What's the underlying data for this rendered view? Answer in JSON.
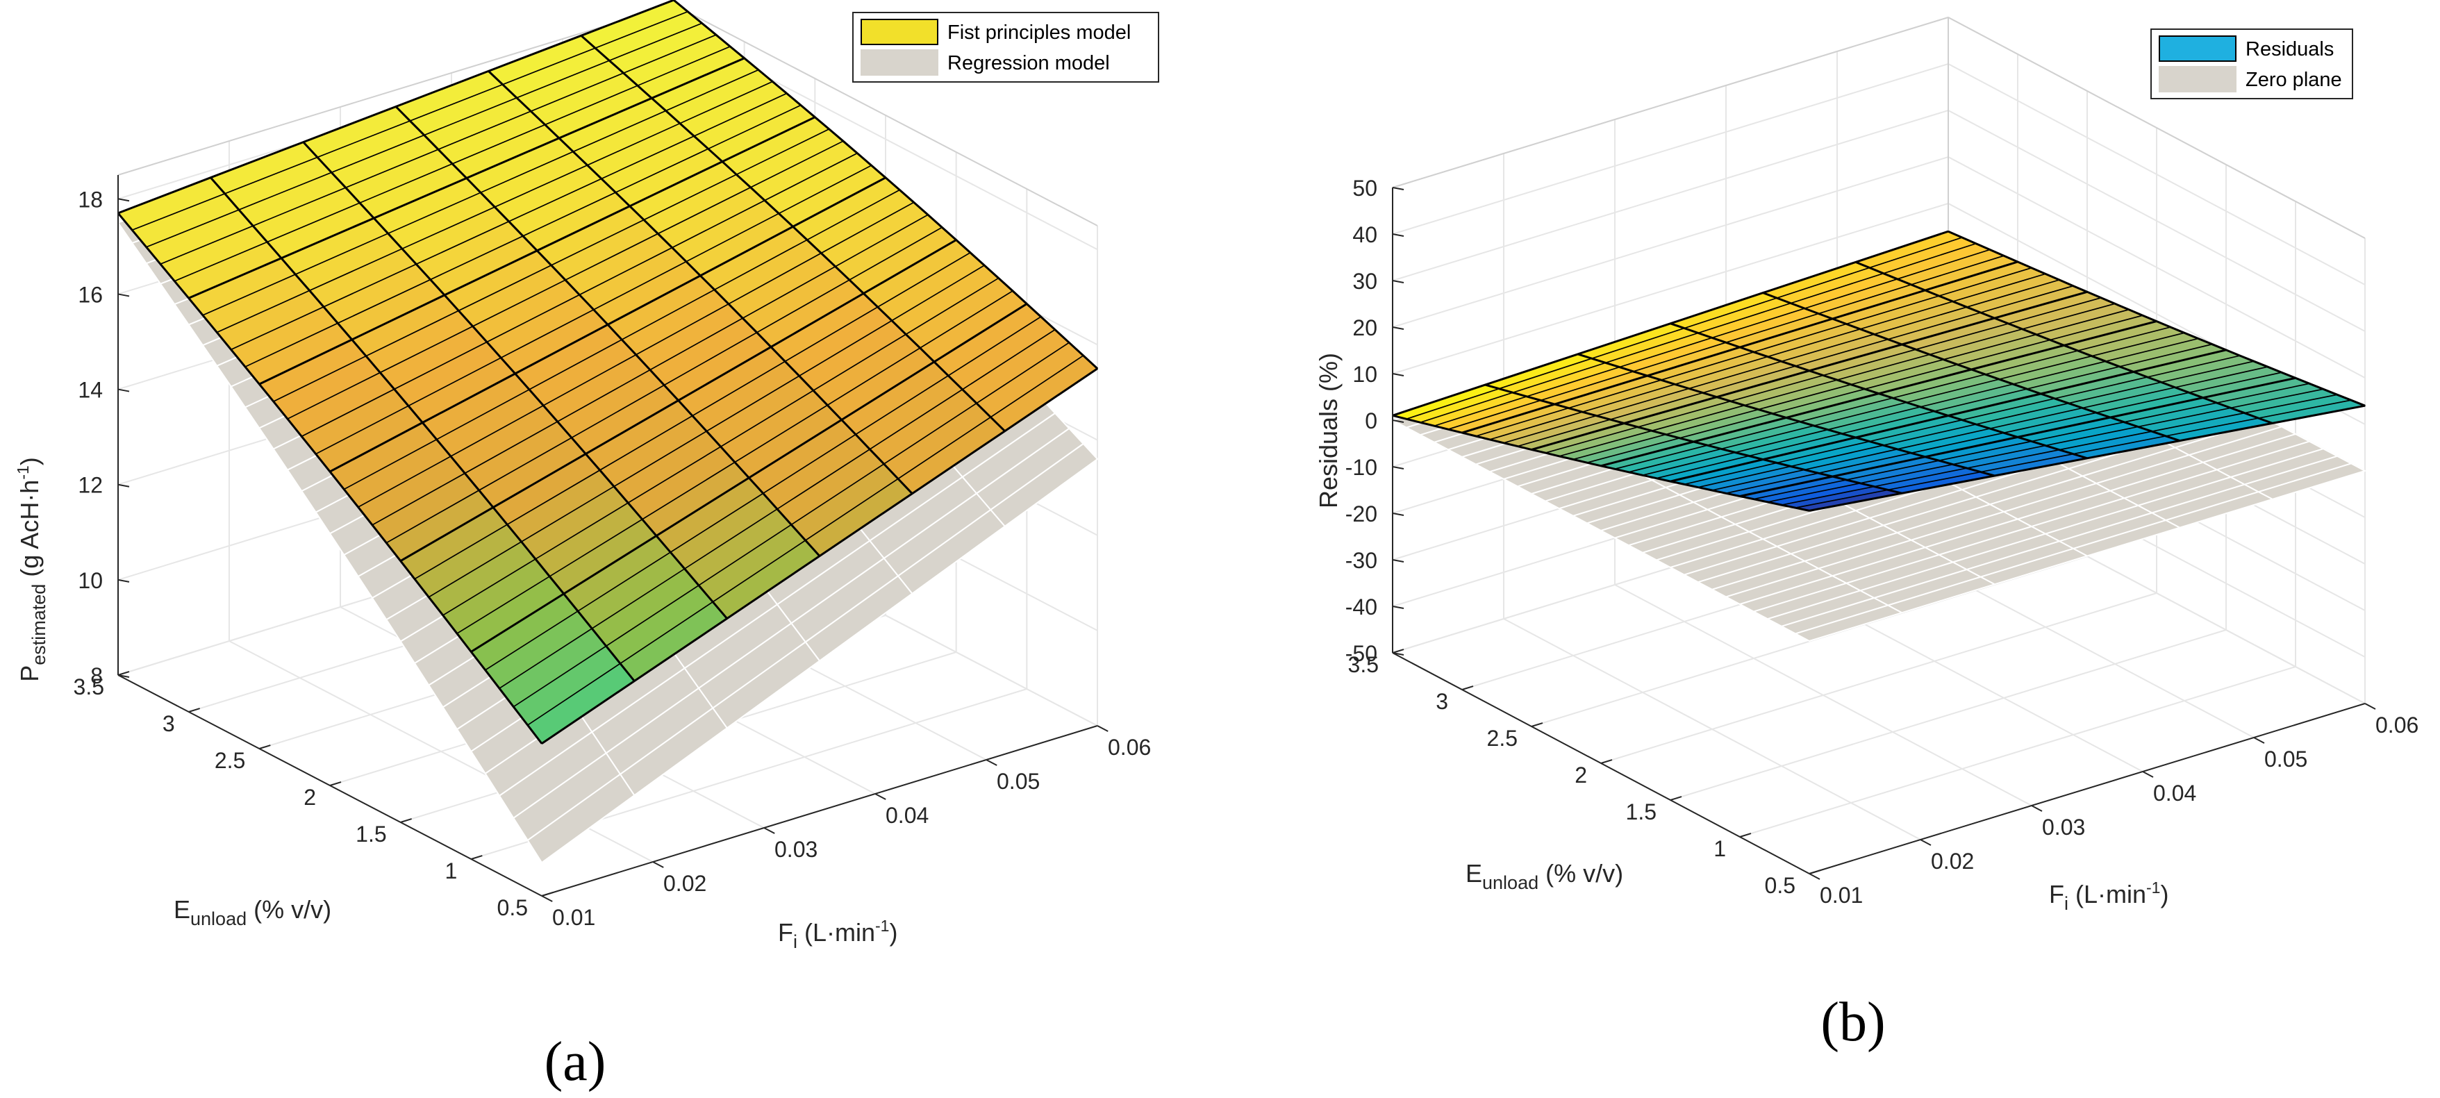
{
  "chart_data": [
    {
      "type": "surface3d",
      "panel_label": "(a)",
      "zlabel": {
        "main": "P",
        "sub": "estimated",
        "rest": " (g AcH·h",
        "sup": "-1",
        "end": ")"
      },
      "xlabel": {
        "main": "F",
        "sub": "i",
        "rest": " (L·min",
        "sup": "-1",
        "end": ")"
      },
      "ylabel": {
        "main": "E",
        "sub": "unload",
        "rest": " (% v/v)"
      },
      "x_ticks": [
        "0.01",
        "0.02",
        "0.03",
        "0.04",
        "0.05",
        "0.06"
      ],
      "y_ticks": [
        "0.5",
        "1",
        "1.5",
        "2",
        "2.5",
        "3",
        "3.5"
      ],
      "z_ticks": [
        "8",
        "10",
        "12",
        "14",
        "16",
        "18"
      ],
      "xlim": [
        0.01,
        0.06
      ],
      "ylim": [
        0.5,
        3.5
      ],
      "zlim": [
        8,
        18.5
      ],
      "legend": [
        "Fist principles model",
        "Regression model"
      ],
      "legend_colors": [
        "#f2e02a",
        "#d8d4cc"
      ],
      "surfaces": {
        "first_principles": {
          "corners": {
            "Fmin_Emin": 11.2,
            "Fmax_Emin": 15.5,
            "Fmin_Emax": 17.7,
            "Fmax_Emax": 18.6
          },
          "color_range": [
            11.2,
            18.6
          ]
        },
        "regression": {
          "corners": {
            "Fmin_Emin": 8.7,
            "Fmax_Emin": 13.6,
            "Fmin_Emax": 17.5,
            "Fmax_Emax": 18.0
          }
        }
      }
    },
    {
      "type": "surface3d",
      "panel_label": "(b)",
      "zlabel": {
        "main": "Residuals (%)"
      },
      "xlabel": {
        "main": "F",
        "sub": "i",
        "rest": " (L·min",
        "sup": "-1",
        "end": ")"
      },
      "ylabel": {
        "main": "E",
        "sub": "unload",
        "rest": " (% v/v)"
      },
      "x_ticks": [
        "0.01",
        "0.02",
        "0.03",
        "0.04",
        "0.05",
        "0.06"
      ],
      "y_ticks": [
        "0.5",
        "1",
        "1.5",
        "2",
        "2.5",
        "3",
        "3.5"
      ],
      "z_ticks": [
        "-50",
        "-40",
        "-30",
        "-20",
        "-10",
        "0",
        "10",
        "20",
        "30",
        "40",
        "50"
      ],
      "xlim": [
        0.01,
        0.06
      ],
      "ylim": [
        0.5,
        3.5
      ],
      "zlim": [
        -50,
        50
      ],
      "legend": [
        "Residuals",
        "Zero plane"
      ],
      "legend_colors": [
        "#1fb0e0",
        "#d8d4cc"
      ],
      "surfaces": {
        "residuals": {
          "corners": {
            "Fmin_Emin": 28,
            "Fmax_Emin": 14,
            "Fmin_Emax": 1,
            "Fmax_Emax": 4
          },
          "color_range": [
            1,
            28
          ]
        },
        "zero_plane": {
          "value": 0
        }
      }
    }
  ]
}
